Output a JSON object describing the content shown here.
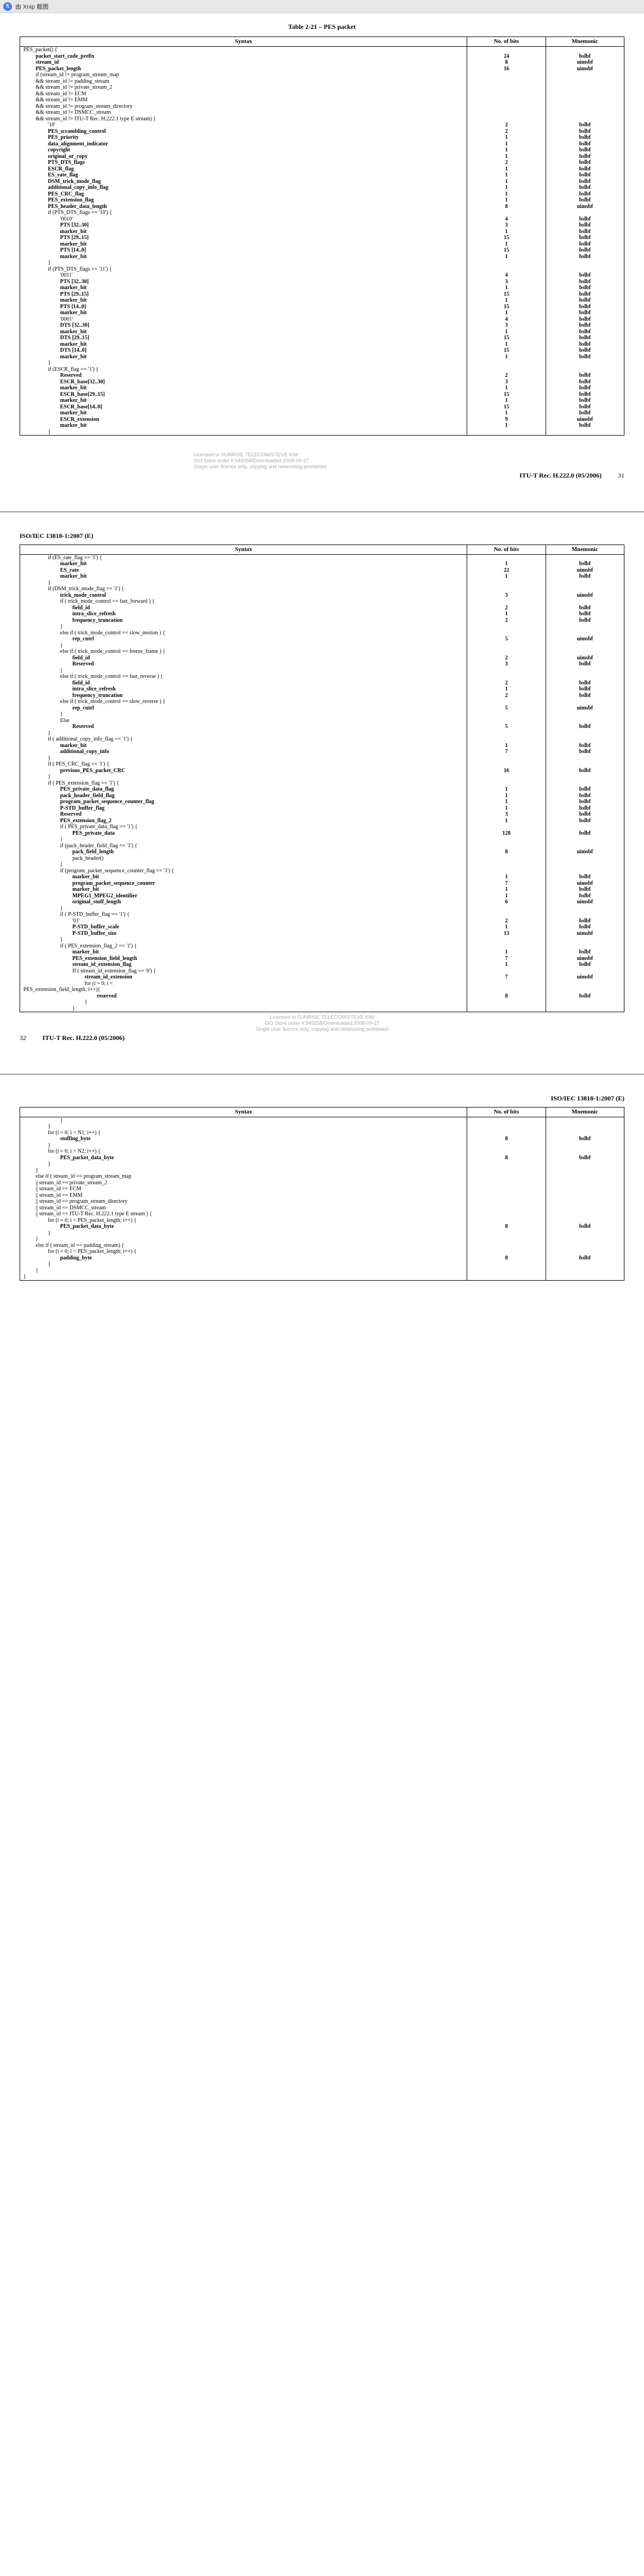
{
  "topbar": {
    "icon_label": "X",
    "text": "由 Xnip 截图"
  },
  "title_p1": "Table 2-21 – PES packet",
  "headers": {
    "syntax": "Syntax",
    "nbits": "No. of bits",
    "mnemonic": "Mnemonic"
  },
  "iso_header": "ISO/IEC 13818-1:2007 (E)",
  "license": {
    "l1": "Licensed to SUNRISE TELECOM/STEVE KIM",
    "l2": "ISO Store order #:949258/Downloaded:2008-09-27",
    "l3": "Single user licence only, copying and networking prohibited"
  },
  "footer_p1": {
    "rec": "ITU-T Rec. H.222.0 (05/2006)",
    "pg": "31"
  },
  "footer_p2": {
    "rec": "ITU-T Rec. H.222.0 (05/2006)",
    "pg": "32"
  },
  "rows_p1": [
    {
      "s": "PES_packet() {",
      "b": "",
      "m": "",
      "i": 0,
      "bd": 0
    },
    {
      "s": "packet_start_code_prefix",
      "b": "24",
      "m": "bslbf",
      "i": 3,
      "bd": 1
    },
    {
      "s": "stream_id",
      "b": "8",
      "m": "uimsbf",
      "i": 3,
      "bd": 1
    },
    {
      "s": "PES_packet_length",
      "b": "16",
      "m": "uimsbf",
      "i": 3,
      "bd": 1
    },
    {
      "s": "if (stream_id != program_stream_map",
      "b": "",
      "m": "",
      "i": 3,
      "bd": 0
    },
    {
      "s": "&& stream_id != padding_stream",
      "b": "",
      "m": "",
      "i": 3,
      "bd": 0
    },
    {
      "s": "&& stream_id != private_stream_2",
      "b": "",
      "m": "",
      "i": 3,
      "bd": 0
    },
    {
      "s": "&& stream_id != ECM",
      "b": "",
      "m": "",
      "i": 3,
      "bd": 0
    },
    {
      "s": "&& stream_id != EMM",
      "b": "",
      "m": "",
      "i": 3,
      "bd": 0
    },
    {
      "s": "&& stream_id != program_stream_directory",
      "b": "",
      "m": "",
      "i": 3,
      "bd": 0
    },
    {
      "s": "&& stream_id != DSMCC_stream",
      "b": "",
      "m": "",
      "i": 3,
      "bd": 0
    },
    {
      "s": "&& stream_id != ITU-T Rec. H.222.1 type E stream) {",
      "b": "",
      "m": "",
      "i": 3,
      "bd": 0
    },
    {
      "s": "'10'",
      "b": "2",
      "m": "bslbf",
      "i": 6,
      "bd": 0
    },
    {
      "s": "PES_scrambling_control",
      "b": "2",
      "m": "bslbf",
      "i": 6,
      "bd": 1
    },
    {
      "s": "PES_priority",
      "b": "1",
      "m": "bslbf",
      "i": 6,
      "bd": 1
    },
    {
      "s": "data_alignment_indicator",
      "b": "1",
      "m": "bslbf",
      "i": 6,
      "bd": 1
    },
    {
      "s": "copyright",
      "b": "1",
      "m": "bslbf",
      "i": 6,
      "bd": 1
    },
    {
      "s": "original_or_copy",
      "b": "1",
      "m": "bslbf",
      "i": 6,
      "bd": 1
    },
    {
      "s": "PTS_DTS_flags",
      "b": "2",
      "m": "bslbf",
      "i": 6,
      "bd": 1
    },
    {
      "s": "ESCR_flag",
      "b": "1",
      "m": "bslbf",
      "i": 6,
      "bd": 1
    },
    {
      "s": "ES_rate_flag",
      "b": "1",
      "m": "bslbf",
      "i": 6,
      "bd": 1
    },
    {
      "s": "DSM_trick_mode_flag",
      "b": "1",
      "m": "bslbf",
      "i": 6,
      "bd": 1
    },
    {
      "s": "additional_copy_info_flag",
      "b": "1",
      "m": "bslbf",
      "i": 6,
      "bd": 1
    },
    {
      "s": "PES_CRC_flag",
      "b": "1",
      "m": "bslbf",
      "i": 6,
      "bd": 1
    },
    {
      "s": "PES_extension_flag",
      "b": "1",
      "m": "bslbf",
      "i": 6,
      "bd": 1
    },
    {
      "s": "PES_header_data_length",
      "b": "8",
      "m": "uimsbf",
      "i": 6,
      "bd": 1
    },
    {
      "s": "if (PTS_DTS_flags == '10') {",
      "b": "",
      "m": "",
      "i": 6,
      "bd": 0
    },
    {
      "s": "'0010'",
      "b": "4",
      "m": "bslbf",
      "i": 9,
      "bd": 0
    },
    {
      "s": "PTS [32..30]",
      "b": "3",
      "m": "bslbf",
      "i": 9,
      "bd": 1
    },
    {
      "s": "marker_bit",
      "b": "1",
      "m": "bslbf",
      "i": 9,
      "bd": 1
    },
    {
      "s": "PTS [29..15]",
      "b": "15",
      "m": "bslbf",
      "i": 9,
      "bd": 1
    },
    {
      "s": "marker_bit",
      "b": "1",
      "m": "bslbf",
      "i": 9,
      "bd": 1
    },
    {
      "s": "PTS [14..0]",
      "b": "15",
      "m": "bslbf",
      "i": 9,
      "bd": 1
    },
    {
      "s": "marker_bit",
      "b": "1",
      "m": "bslbf",
      "i": 9,
      "bd": 1
    },
    {
      "s": "}",
      "b": "",
      "m": "",
      "i": 6,
      "bd": 0
    },
    {
      "s": "if (PTS_DTS_flags == '11') {",
      "b": "",
      "m": "",
      "i": 6,
      "bd": 0
    },
    {
      "s": "'0011'",
      "b": "4",
      "m": "bslbf",
      "i": 9,
      "bd": 0
    },
    {
      "s": "PTS [32..30]",
      "b": "3",
      "m": "bslbf",
      "i": 9,
      "bd": 1
    },
    {
      "s": "marker_bit",
      "b": "1",
      "m": "bslbf",
      "i": 9,
      "bd": 1
    },
    {
      "s": "PTS [29..15]",
      "b": "15",
      "m": "bslbf",
      "i": 9,
      "bd": 1
    },
    {
      "s": "marker_bit",
      "b": "1",
      "m": "bslbf",
      "i": 9,
      "bd": 1
    },
    {
      "s": "PTS [14..0]",
      "b": "15",
      "m": "bslbf",
      "i": 9,
      "bd": 1
    },
    {
      "s": "marker_bit",
      "b": "1",
      "m": "bslbf",
      "i": 9,
      "bd": 1
    },
    {
      "s": "'0001'",
      "b": "4",
      "m": "bslbf",
      "i": 9,
      "bd": 0
    },
    {
      "s": "DTS [32..30]",
      "b": "3",
      "m": "bslbf",
      "i": 9,
      "bd": 1
    },
    {
      "s": "marker_bit",
      "b": "1",
      "m": "bslbf",
      "i": 9,
      "bd": 1
    },
    {
      "s": "DTS [29..15]",
      "b": "15",
      "m": "bslbf",
      "i": 9,
      "bd": 1
    },
    {
      "s": "marker_bit",
      "b": "1",
      "m": "bslbf",
      "i": 9,
      "bd": 1
    },
    {
      "s": "DTS [14..0]",
      "b": "15",
      "m": "bslbf",
      "i": 9,
      "bd": 1
    },
    {
      "s": "marker_bit",
      "b": "1",
      "m": "bslbf",
      "i": 9,
      "bd": 1
    },
    {
      "s": "}",
      "b": "",
      "m": "",
      "i": 6,
      "bd": 0
    },
    {
      "s": "if (ESCR_flag == '1') {",
      "b": "",
      "m": "",
      "i": 6,
      "bd": 0
    },
    {
      "s": "Reserved",
      "b": "2",
      "m": "bslbf",
      "i": 9,
      "bd": 1
    },
    {
      "s": "ESCR_base[32..30]",
      "b": "3",
      "m": "bslbf",
      "i": 9,
      "bd": 1
    },
    {
      "s": "marker_bit",
      "b": "1",
      "m": "bslbf",
      "i": 9,
      "bd": 1
    },
    {
      "s": "ESCR_base[29..15]",
      "b": "15",
      "m": "bslbf",
      "i": 9,
      "bd": 1
    },
    {
      "s": "marker_bit",
      "b": "1",
      "m": "bslbf",
      "i": 9,
      "bd": 1
    },
    {
      "s": "ESCR_base[14..0]",
      "b": "15",
      "m": "bslbf",
      "i": 9,
      "bd": 1
    },
    {
      "s": "marker_bit",
      "b": "1",
      "m": "bslbf",
      "i": 9,
      "bd": 1
    },
    {
      "s": "ESCR_extension",
      "b": "9",
      "m": "uimsbf",
      "i": 9,
      "bd": 1
    },
    {
      "s": "marker_bit",
      "b": "1",
      "m": "bslbf",
      "i": 9,
      "bd": 1
    },
    {
      "s": "}",
      "b": "",
      "m": "",
      "i": 6,
      "bd": 0
    }
  ],
  "rows_p2": [
    {
      "s": "if (ES_rate_flag == '1') {",
      "b": "",
      "m": "",
      "i": 6,
      "bd": 0
    },
    {
      "s": "marker_bit",
      "b": "1",
      "m": "bslbf",
      "i": 9,
      "bd": 1
    },
    {
      "s": "ES_rate",
      "b": "22",
      "m": "uimsbf",
      "i": 9,
      "bd": 1
    },
    {
      "s": "marker_bit",
      "b": "1",
      "m": "bslbf",
      "i": 9,
      "bd": 1
    },
    {
      "s": "}",
      "b": "",
      "m": "",
      "i": 6,
      "bd": 0
    },
    {
      "s": "if (DSM_trick_mode_flag == '1') {",
      "b": "",
      "m": "",
      "i": 6,
      "bd": 0
    },
    {
      "s": "trick_mode_control",
      "b": "3",
      "m": "uimsbf",
      "i": 9,
      "bd": 1
    },
    {
      "s": "if ( trick_mode_control == fast_forward ) {",
      "b": "",
      "m": "",
      "i": 9,
      "bd": 0
    },
    {
      "s": "field_id",
      "b": "2",
      "m": "bslbf",
      "i": 12,
      "bd": 1
    },
    {
      "s": "intra_slice_refresh",
      "b": "1",
      "m": "bslbf",
      "i": 12,
      "bd": 1
    },
    {
      "s": "frequency_truncation",
      "b": "2",
      "m": "bslbf",
      "i": 12,
      "bd": 1
    },
    {
      "s": "}",
      "b": "",
      "m": "",
      "i": 9,
      "bd": 0
    },
    {
      "s": "else if ( trick_mode_control == slow_motion ) {",
      "b": "",
      "m": "",
      "i": 9,
      "bd": 0
    },
    {
      "s": "rep_cntrl",
      "b": "5",
      "m": "uimsbf",
      "i": 12,
      "bd": 1
    },
    {
      "s": "}",
      "b": "",
      "m": "",
      "i": 9,
      "bd": 0
    },
    {
      "s": "else if ( trick_mode_control == freeze_frame ) {",
      "b": "",
      "m": "",
      "i": 9,
      "bd": 0
    },
    {
      "s": "field_id",
      "b": "2",
      "m": "uimsbf",
      "i": 12,
      "bd": 1
    },
    {
      "s": "Reserved",
      "b": "3",
      "m": "bslbf",
      "i": 12,
      "bd": 1
    },
    {
      "s": "}",
      "b": "",
      "m": "",
      "i": 9,
      "bd": 0
    },
    {
      "s": "else if ( trick_mode_control == fast_reverse ) {",
      "b": "",
      "m": "",
      "i": 9,
      "bd": 0
    },
    {
      "s": "field_id",
      "b": "2",
      "m": "bslbf",
      "i": 12,
      "bd": 1
    },
    {
      "s": "intra_slice_refresh",
      "b": "1",
      "m": "bslbf",
      "i": 12,
      "bd": 1
    },
    {
      "s": "frequency_truncation",
      "b": "2",
      "m": "bslbf",
      "i": 12,
      "bd": 1
    },
    {
      "s": "else if ( trick_mode_control == slow_reverse ) {",
      "b": "",
      "m": "",
      "i": 9,
      "bd": 0
    },
    {
      "s": "rep_cntrl",
      "b": "5",
      "m": "uimsbf",
      "i": 12,
      "bd": 1
    },
    {
      "s": "}",
      "b": "",
      "m": "",
      "i": 9,
      "bd": 0
    },
    {
      "s": "Else",
      "b": "",
      "m": "",
      "i": 9,
      "bd": 0
    },
    {
      "s": "Reserved",
      "b": "5",
      "m": "bslbf",
      "i": 12,
      "bd": 1
    },
    {
      "s": "}",
      "b": "",
      "m": "",
      "i": 6,
      "bd": 0
    },
    {
      "s": "if ( additional_copy_info_flag == '1') {",
      "b": "",
      "m": "",
      "i": 6,
      "bd": 0
    },
    {
      "s": "marker_bit",
      "b": "1",
      "m": "bslbf",
      "i": 9,
      "bd": 1
    },
    {
      "s": "additional_copy_info",
      "b": "7",
      "m": "bslbf",
      "i": 9,
      "bd": 1
    },
    {
      "s": "}",
      "b": "",
      "m": "",
      "i": 6,
      "bd": 0
    },
    {
      "s": "if ( PES_CRC_flag == '1') {",
      "b": "",
      "m": "",
      "i": 6,
      "bd": 0
    },
    {
      "s": "previous_PES_packet_CRC",
      "b": "16",
      "m": "bslbf",
      "i": 9,
      "bd": 1
    },
    {
      "s": "}",
      "b": "",
      "m": "",
      "i": 6,
      "bd": 0
    },
    {
      "s": "if ( PES_extension_flag == '1') {",
      "b": "",
      "m": "",
      "i": 6,
      "bd": 0
    },
    {
      "s": "PES_private_data_flag",
      "b": "1",
      "m": "bslbf",
      "i": 9,
      "bd": 1
    },
    {
      "s": "pack_header_field_flag",
      "b": "1",
      "m": "bslbf",
      "i": 9,
      "bd": 1
    },
    {
      "s": "program_packet_sequence_counter_flag",
      "b": "1",
      "m": "bslbf",
      "i": 9,
      "bd": 1
    },
    {
      "s": "P-STD_buffer_flag",
      "b": "1",
      "m": "bslbf",
      "i": 9,
      "bd": 1
    },
    {
      "s": "Reserved",
      "b": "3",
      "m": "bslbf",
      "i": 9,
      "bd": 1
    },
    {
      "s": "PES_extension_flag_2",
      "b": "1",
      "m": "bslbf",
      "i": 9,
      "bd": 1
    },
    {
      "s": "if ( PES_private_data_flag == '1') {",
      "b": "",
      "m": "",
      "i": 9,
      "bd": 0
    },
    {
      "s": "PES_private_data",
      "b": "128",
      "m": "bslbf",
      "i": 12,
      "bd": 1
    },
    {
      "s": "}",
      "b": "",
      "m": "",
      "i": 9,
      "bd": 0
    },
    {
      "s": "if (pack_header_field_flag == '1') {",
      "b": "",
      "m": "",
      "i": 9,
      "bd": 0
    },
    {
      "s": "pack_field_length",
      "b": "8",
      "m": "uimsbf",
      "i": 12,
      "bd": 1
    },
    {
      "s": "pack_header()",
      "b": "",
      "m": "",
      "i": 12,
      "bd": 0
    },
    {
      "s": "}",
      "b": "",
      "m": "",
      "i": 9,
      "bd": 0
    },
    {
      "s": "if (program_packet_sequence_counter_flag == '1') {",
      "b": "",
      "m": "",
      "i": 9,
      "bd": 0
    },
    {
      "s": "marker_bit",
      "b": "1",
      "m": "bslbf",
      "i": 12,
      "bd": 1
    },
    {
      "s": "program_packet_sequence_counter",
      "b": "7",
      "m": "uimsbf",
      "i": 12,
      "bd": 1
    },
    {
      "s": "marker_bit",
      "b": "1",
      "m": "bslbf",
      "i": 12,
      "bd": 1
    },
    {
      "s": "MPEG1_MPEG2_identifier",
      "b": "1",
      "m": "bslbf",
      "i": 12,
      "bd": 1
    },
    {
      "s": "original_stuff_length",
      "b": "6",
      "m": "uimsbf",
      "i": 12,
      "bd": 1
    },
    {
      "s": "}",
      "b": "",
      "m": "",
      "i": 9,
      "bd": 0
    },
    {
      "s": "if ( P-STD_buffer_flag == '1') {",
      "b": "",
      "m": "",
      "i": 9,
      "bd": 0
    },
    {
      "s": "'01'",
      "b": "2",
      "m": "bslbf",
      "i": 12,
      "bd": 0
    },
    {
      "s": "P-STD_buffer_scale",
      "b": "1",
      "m": "bslbf",
      "i": 12,
      "bd": 1
    },
    {
      "s": "P-STD_buffer_size",
      "b": "13",
      "m": "uimsbf",
      "i": 12,
      "bd": 1
    },
    {
      "s": "}",
      "b": "",
      "m": "",
      "i": 9,
      "bd": 0
    },
    {
      "s": "if ( PES_extension_flag_2 == '1') {",
      "b": "",
      "m": "",
      "i": 9,
      "bd": 0
    },
    {
      "s": "marker_bit",
      "b": "1",
      "m": "bslbf",
      "i": 12,
      "bd": 1
    },
    {
      "s": "PES_extension_field_length",
      "b": "7",
      "m": "uimsbf",
      "i": 12,
      "bd": 1
    },
    {
      "s": "stream_id_extension_flag",
      "b": "1",
      "m": "bslbf",
      "i": 12,
      "bd": 1
    },
    {
      "s": "If ( stream_id_extension_flag == '0') {",
      "b": "",
      "m": "",
      "i": 12,
      "bd": 0
    },
    {
      "s": "stream_id_extension",
      "b": "7",
      "m": "uimsbf",
      "i": 15,
      "bd": 1
    },
    {
      "s": "for (i = 0; i <",
      "b": "",
      "m": "",
      "i": 15,
      "bd": 0
    },
    {
      "s": "PES_extension_field_length; i++){",
      "b": "",
      "m": "",
      "i": 0,
      "bd": 0
    },
    {
      "s": "reserved",
      "b": "8",
      "m": "bslbf",
      "i": 18,
      "bd": 1
    },
    {
      "s": "}",
      "b": "",
      "m": "",
      "i": 15,
      "bd": 0
    },
    {
      "s": "}",
      "b": "",
      "m": "",
      "i": 12,
      "bd": 0
    }
  ],
  "rows_p3": [
    {
      "s": "}",
      "b": "",
      "m": "",
      "i": 9,
      "bd": 0
    },
    {
      "s": "}",
      "b": "",
      "m": "",
      "i": 6,
      "bd": 0
    },
    {
      "s": "for (i = 0; i < N1; i++) {",
      "b": "",
      "m": "",
      "i": 6,
      "bd": 0
    },
    {
      "s": "stuffing_byte",
      "b": "8",
      "m": "bslbf",
      "i": 9,
      "bd": 1
    },
    {
      "s": "}",
      "b": "",
      "m": "",
      "i": 6,
      "bd": 0
    },
    {
      "s": "for (i = 0; i < N2; i++) {",
      "b": "",
      "m": "",
      "i": 6,
      "bd": 0
    },
    {
      "s": "PES_packet_data_byte",
      "b": "8",
      "m": "bslbf",
      "i": 9,
      "bd": 1
    },
    {
      "s": "}",
      "b": "",
      "m": "",
      "i": 6,
      "bd": 0
    },
    {
      "s": "}",
      "b": "",
      "m": "",
      "i": 3,
      "bd": 0
    },
    {
      "s": "else if ( stream_id == program_stream_map",
      "b": "",
      "m": "",
      "i": 3,
      "bd": 0
    },
    {
      "s": "|| stream_id == private_stream_2",
      "b": "",
      "m": "",
      "i": 3,
      "bd": 0
    },
    {
      "s": "|| stream_id == ECM",
      "b": "",
      "m": "",
      "i": 3,
      "bd": 0
    },
    {
      "s": "|| stream_id == EMM",
      "b": "",
      "m": "",
      "i": 3,
      "bd": 0
    },
    {
      "s": "|| stream_id == program_stream_directory",
      "b": "",
      "m": "",
      "i": 3,
      "bd": 0
    },
    {
      "s": "|| stream_id == DSMCC_stream",
      "b": "",
      "m": "",
      "i": 3,
      "bd": 0
    },
    {
      "s": "|| stream_id == ITU-T Rec. H.222.1 type E stream ) {",
      "b": "",
      "m": "",
      "i": 3,
      "bd": 0
    },
    {
      "s": "for (i = 0; i < PES_packet_length; i++) {",
      "b": "",
      "m": "",
      "i": 6,
      "bd": 0
    },
    {
      "s": "PES_packet_data_byte",
      "b": "8",
      "m": "bslbf",
      "i": 9,
      "bd": 1
    },
    {
      "s": "}",
      "b": "",
      "m": "",
      "i": 6,
      "bd": 0
    },
    {
      "s": "}",
      "b": "",
      "m": "",
      "i": 3,
      "bd": 0
    },
    {
      "s": "else if ( stream_id == padding_stream) {",
      "b": "",
      "m": "",
      "i": 3,
      "bd": 0
    },
    {
      "s": "for (i = 0; i < PES_packet_length; i++) {",
      "b": "",
      "m": "",
      "i": 6,
      "bd": 0
    },
    {
      "s": "padding_byte",
      "b": "8",
      "m": "bslbf",
      "i": 9,
      "bd": 1
    },
    {
      "s": "}",
      "b": "",
      "m": "",
      "i": 6,
      "bd": 0
    },
    {
      "s": "}",
      "b": "",
      "m": "",
      "i": 3,
      "bd": 0
    },
    {
      "s": "}",
      "b": "",
      "m": "",
      "i": 0,
      "bd": 0
    }
  ]
}
